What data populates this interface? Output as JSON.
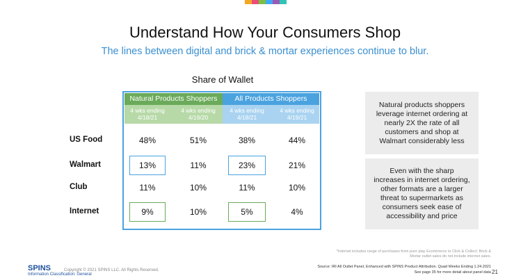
{
  "header": {
    "title": "Understand How Your Consumers Shop",
    "subtitle": "The lines between digital and brick & mortar experiences continue to blur."
  },
  "table": {
    "title": "Share of Wallet",
    "groups": [
      "Natural Products Shoppers",
      "All Products Shoppers"
    ],
    "periods": [
      "4 wks ending 4/18/21",
      "4 wks ending 4/19/20",
      "4 wks ending 4/18/21",
      "4 wks ending 4/19/21"
    ],
    "rows": [
      {
        "label": "US Food",
        "values": [
          "48%",
          "51%",
          "38%",
          "44%"
        ]
      },
      {
        "label": "Walmart",
        "values": [
          "13%",
          "11%",
          "23%",
          "21%"
        ]
      },
      {
        "label": "Club",
        "values": [
          "11%",
          "10%",
          "11%",
          "10%"
        ]
      },
      {
        "label": "Internet",
        "values": [
          "9%",
          "10%",
          "5%",
          "4%"
        ]
      }
    ]
  },
  "notes": [
    "Natural products shoppers leverage internet ordering at nearly 2X the rate of all customers and shop at Walmart considerably less",
    "Even with the sharp increases in internet ordering, other formats are a larger threat to supermarkets as consumers seek ease of accessibility and price"
  ],
  "footer": {
    "footnote": "*Internet includes range of purchases from pure play Ecommerce to Click & Collect; Brick & Mortar outlet sales do not include internet sales.",
    "source": "Source: IRI All Outlet Panel, Enhanced with SPINS Product Attribution. Quad Weeks Ending 1.24.2021",
    "source_note": "See page 35 for more detail about panel data",
    "logo": "SPINS",
    "copyright": "Copyright © 2021 SPINS LLC. All Rights Reserved.",
    "classification": "Information Classification: General",
    "page": "21"
  }
}
